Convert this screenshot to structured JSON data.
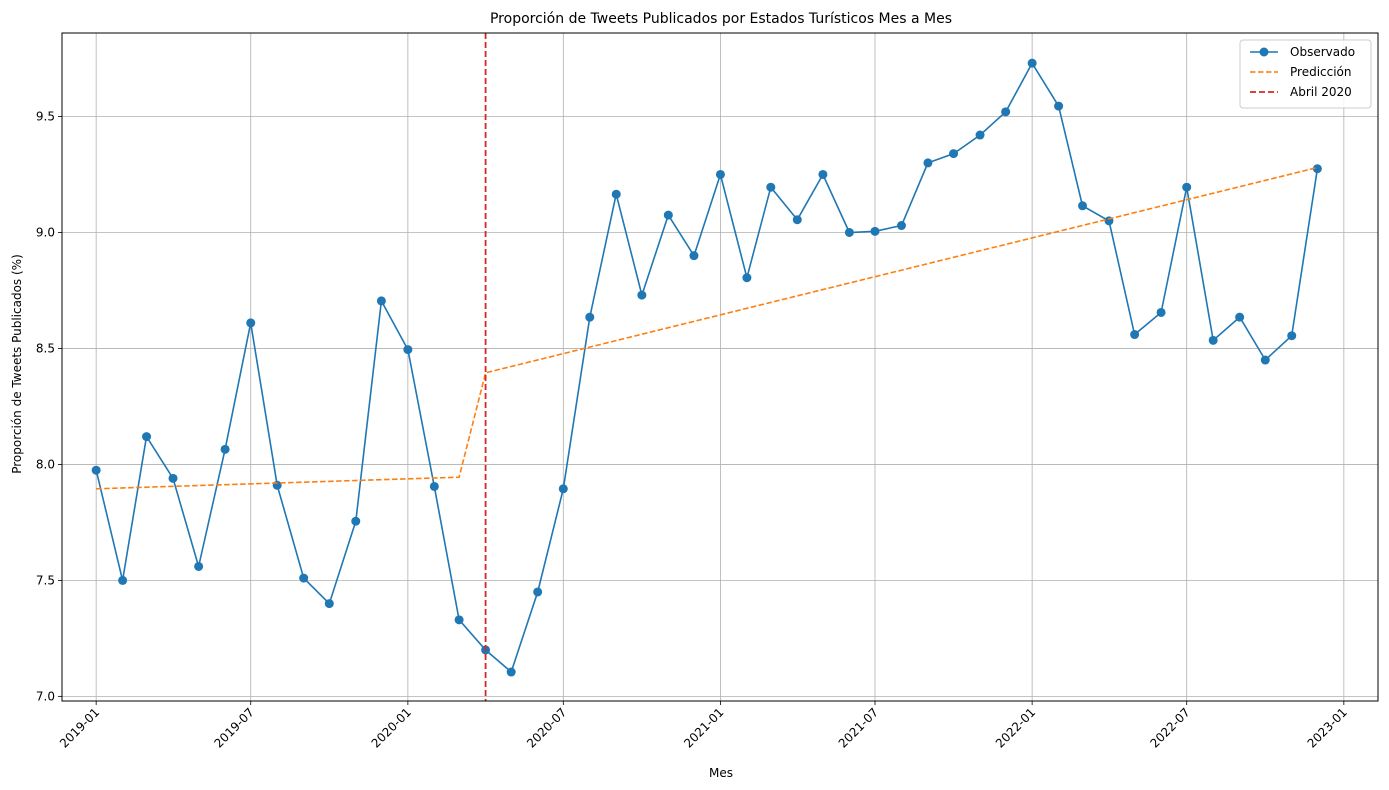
{
  "chart_data": {
    "type": "line",
    "title": "Proporción de Tweets Publicados por Estados Turísticos Mes a Mes",
    "xlabel": "Mes",
    "ylabel": "Proporción de Tweets Publicados (%)",
    "xlim": [
      "2018-11-22",
      "2023-02-10"
    ],
    "ylim": [
      6.98,
      9.86
    ],
    "x_ticks": [
      "2019-01",
      "2019-07",
      "2020-01",
      "2020-07",
      "2021-01",
      "2021-07",
      "2022-01",
      "2022-07",
      "2023-01"
    ],
    "y_ticks": [
      "7.0",
      "7.5",
      "8.0",
      "8.5",
      "9.0",
      "9.5"
    ],
    "grid": true,
    "legend_position": "top-right",
    "series": [
      {
        "name": "Observado",
        "style": "line-marker",
        "color": "#1f77b4",
        "x": [
          "2019-01",
          "2019-02",
          "2019-03",
          "2019-04",
          "2019-05",
          "2019-06",
          "2019-07",
          "2019-08",
          "2019-09",
          "2019-10",
          "2019-11",
          "2019-12",
          "2020-01",
          "2020-02",
          "2020-03",
          "2020-04",
          "2020-05",
          "2020-06",
          "2020-07",
          "2020-08",
          "2020-09",
          "2020-10",
          "2020-11",
          "2020-12",
          "2021-01",
          "2021-02",
          "2021-03",
          "2021-04",
          "2021-05",
          "2021-06",
          "2021-07",
          "2021-08",
          "2021-09",
          "2021-10",
          "2021-11",
          "2021-12",
          "2022-01",
          "2022-02",
          "2022-03",
          "2022-04",
          "2022-05",
          "2022-06",
          "2022-07",
          "2022-08",
          "2022-09",
          "2022-10",
          "2022-11",
          "2022-12"
        ],
        "values": [
          7.975,
          7.5,
          8.12,
          7.94,
          7.56,
          8.065,
          8.61,
          7.91,
          7.51,
          7.4,
          7.755,
          8.705,
          8.495,
          7.905,
          7.33,
          7.2,
          7.105,
          7.45,
          7.895,
          8.635,
          9.165,
          8.73,
          9.075,
          8.9,
          9.25,
          8.805,
          9.195,
          9.055,
          9.25,
          9.0,
          9.005,
          9.03,
          9.3,
          9.34,
          9.42,
          9.52,
          9.73,
          9.545,
          9.115,
          9.05,
          8.56,
          8.655,
          9.195,
          8.535,
          8.635,
          8.45,
          8.555,
          9.275
        ]
      },
      {
        "name": "Predicción",
        "style": "dashed",
        "color": "#ff7f0e",
        "x": [
          "2019-01",
          "2020-03",
          "2020-04",
          "2022-12"
        ],
        "values": [
          7.895,
          7.945,
          8.395,
          9.28
        ]
      },
      {
        "name": "Abril 2020",
        "style": "vline-dashed",
        "color": "#d62728",
        "x": [
          "2020-04"
        ]
      }
    ]
  }
}
